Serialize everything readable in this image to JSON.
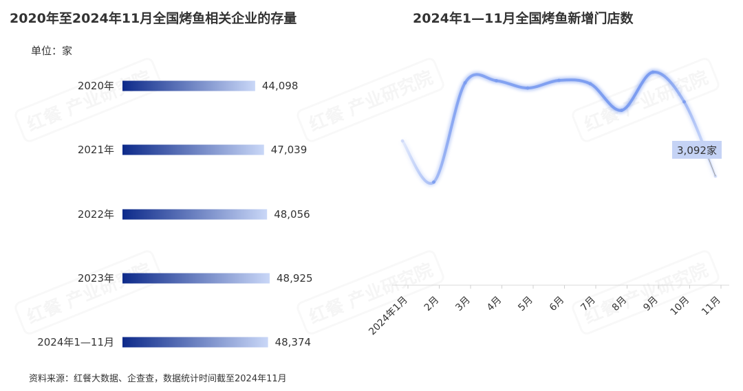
{
  "left_chart_title": "2020年至2024年11月全国烤鱼相关企业的存量",
  "right_chart_title": "2024年1—11月全国烤鱼新增门店数",
  "unit_label": "单位：家",
  "source_note": "资料来源：红餐大数据、企查查，数据统计时间截至2024年11月",
  "watermark_text": "红餐 产业研究院",
  "colors": {
    "bar_dark": "#0d2a8a",
    "bar_light": "#c9d7f7",
    "line": "#7b9cf0",
    "callout_bg": "#c5d3f5"
  },
  "chart_data": [
    {
      "type": "bar",
      "orientation": "horizontal",
      "title": "2020年至2024年11月全国烤鱼相关企业的存量",
      "unit": "单位：家",
      "categories": [
        "2020年",
        "2021年",
        "2022年",
        "2023年",
        "2024年1—11月"
      ],
      "values": [
        44098,
        47039,
        48056,
        48925,
        48374
      ],
      "value_labels": [
        "44,098",
        "47,039",
        "48,056",
        "48,925",
        "48,374"
      ]
    },
    {
      "type": "line",
      "title": "2024年1—11月全国烤鱼新增门店数",
      "categories": [
        "2024年1月",
        "2月",
        "3月",
        "4月",
        "5月",
        "6月",
        "7月",
        "8月",
        "9月",
        "10月",
        "11月"
      ],
      "values": [
        4250,
        2900,
        6150,
        6220,
        5980,
        6230,
        6120,
        5250,
        6500,
        5530,
        3092
      ],
      "annotation": "3,092家",
      "grid": false
    }
  ]
}
